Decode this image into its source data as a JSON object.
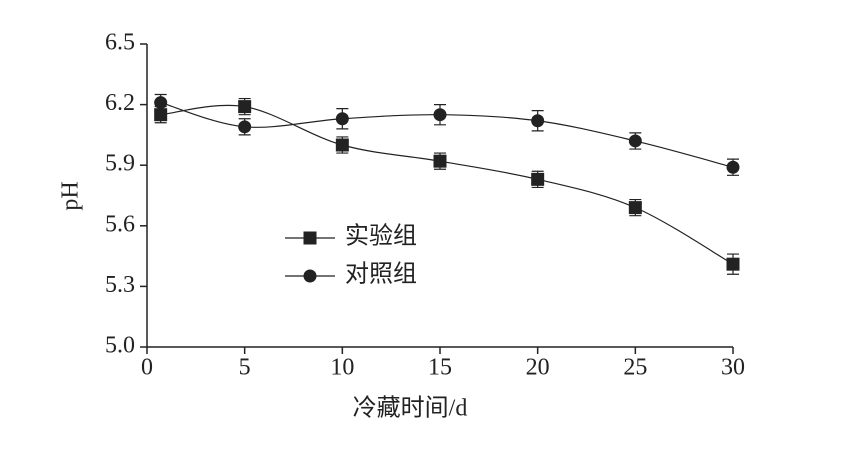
{
  "chart_data": {
    "type": "line",
    "x_label": "冷藏时间/d",
    "y_label": "pH",
    "x": [
      0.7,
      5,
      10,
      15,
      20,
      25,
      30
    ],
    "series": [
      {
        "name": "实验组",
        "marker": "square",
        "color": "#222222",
        "values": [
          6.15,
          6.19,
          6.0,
          5.92,
          5.83,
          5.69,
          5.41
        ],
        "errors": [
          0.04,
          0.04,
          0.04,
          0.04,
          0.04,
          0.04,
          0.05
        ]
      },
      {
        "name": "对照组",
        "marker": "circle",
        "color": "#222222",
        "values": [
          6.21,
          6.09,
          6.13,
          6.15,
          6.12,
          6.02,
          5.89
        ],
        "errors": [
          0.04,
          0.04,
          0.05,
          0.05,
          0.05,
          0.04,
          0.04
        ]
      }
    ],
    "xlim": [
      0,
      30
    ],
    "xticks": [
      0,
      5,
      10,
      15,
      20,
      25,
      30
    ],
    "ylim": [
      5,
      6.5
    ],
    "yticks": [
      {
        "value": 5,
        "label": "5.0"
      },
      5.3,
      5.6,
      5.9,
      6.2,
      6.5
    ],
    "legend": "center-left",
    "smooth": true,
    "grid": false
  }
}
